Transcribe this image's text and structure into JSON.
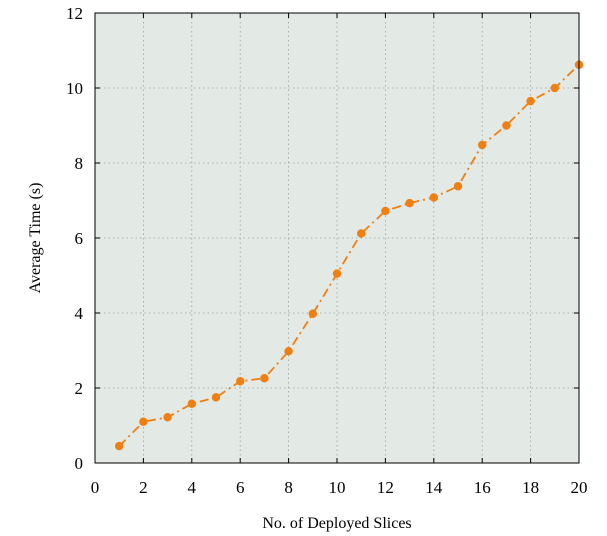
{
  "chart_data": {
    "type": "line",
    "title": "",
    "xlabel": "No. of Deployed Slices",
    "ylabel": "Average Time (s)",
    "xlim": [
      0,
      20
    ],
    "ylim": [
      0,
      12
    ],
    "xticks": [
      0,
      2,
      4,
      6,
      8,
      10,
      12,
      14,
      16,
      18,
      20
    ],
    "yticks": [
      0,
      2,
      4,
      6,
      8,
      10,
      12
    ],
    "grid": true,
    "legend": "none",
    "colors": {
      "series": "#f07f12",
      "plot_background": "#e3e9e5",
      "grid": "#9aa39e",
      "axis": "#000000"
    },
    "series": [
      {
        "x": [
          1,
          2,
          3,
          4,
          5,
          6,
          7,
          8,
          9,
          10,
          11,
          12,
          13,
          14,
          15,
          16,
          17,
          18,
          19,
          20
        ],
        "values": [
          0.45,
          1.1,
          1.22,
          1.58,
          1.75,
          2.18,
          2.26,
          2.98,
          3.98,
          5.05,
          6.12,
          6.72,
          6.93,
          7.08,
          7.38,
          8.48,
          9.0,
          9.65,
          10.0,
          10.62
        ],
        "line_style": "dash-dot",
        "marker": "circle"
      }
    ]
  }
}
